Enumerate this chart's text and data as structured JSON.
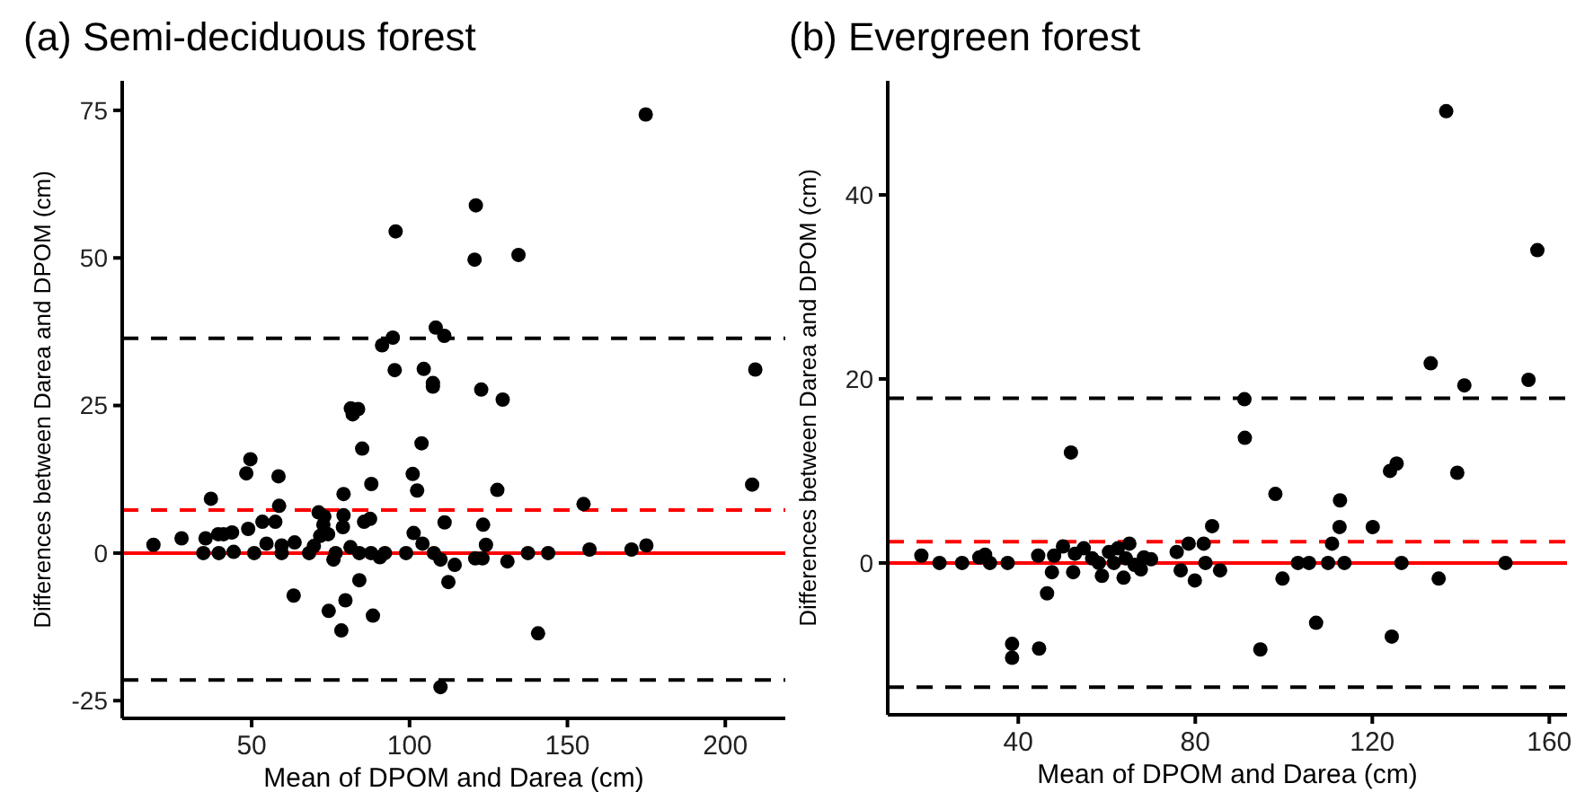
{
  "chart_data": [
    {
      "type": "scatter",
      "title": "(a) Semi-deciduous forest",
      "xlabel": "Mean of DPOM and Darea (cm)",
      "ylabel": "Differences between Darea and DPOM (cm)",
      "xlim": [
        9,
        219
      ],
      "ylim": [
        -28,
        80
      ],
      "xticks": [
        50,
        100,
        150,
        200
      ],
      "yticks": [
        -25,
        0,
        25,
        50,
        75
      ],
      "marker": "circle",
      "ref_lines": [
        {
          "axis": "y",
          "value": 36.4,
          "color": "#000000",
          "line_style": "dashed"
        },
        {
          "axis": "y",
          "value": 7.3,
          "color": "#ff0000",
          "line_style": "dashed"
        },
        {
          "axis": "y",
          "value": 0,
          "color": "#ff0000",
          "line_style": "solid"
        },
        {
          "axis": "y",
          "value": -21.5,
          "color": "#000000",
          "line_style": "dashed"
        }
      ],
      "series": [
        {
          "color": "#000000",
          "x": [
            174.8,
            121,
            95.6,
            120.6,
            134.5,
            108.3,
            111,
            94.7,
            91.3,
            95.3,
            104.5,
            107.4,
            107.4,
            122.7,
            129.5,
            209.5,
            81.4,
            83.7,
            82,
            85,
            103.8,
            49.6,
            48.3,
            58.5,
            101,
            102.4,
            87.9,
            79.1,
            79.1,
            127.8,
            37.1,
            58.7,
            155.1,
            208.5,
            18.9,
            27.8,
            35.4,
            39.4,
            41.1,
            43.8,
            34.7,
            39.6,
            44.3,
            48.9,
            50.8,
            53.4,
            54.7,
            57.5,
            59.5,
            59.5,
            63.6,
            68.2,
            69.7,
            71.7,
            72.7,
            73,
            74.2,
            78.9,
            75.9,
            76.6,
            81.3,
            84.1,
            85.6,
            87.5,
            87.8,
            92.2,
            90.6,
            98.9,
            101.3,
            104.1,
            107.7,
            109.8,
            111.1,
            114.3,
            120.8,
            123.3,
            124.2,
            123.1,
            131,
            137.5,
            143.9,
            157,
            170.3,
            175,
            63.3,
            84.1,
            74.4,
            79.7,
            78.4,
            88.4,
            112.3,
            140.7,
            109.8,
            71.2
          ],
          "values": [
            74.3,
            58.9,
            54.5,
            49.7,
            50.5,
            38.2,
            36.8,
            36.5,
            35.2,
            31,
            31.2,
            28.8,
            28.2,
            27.7,
            26,
            31.1,
            24.5,
            24.4,
            23.5,
            17.7,
            18.6,
            15.9,
            13.5,
            13,
            13.4,
            10.6,
            11.7,
            10,
            6.4,
            10.7,
            9.2,
            8,
            8.3,
            11.6,
            1.4,
            2.5,
            2.5,
            3.2,
            3.2,
            3.5,
            0,
            0,
            0.2,
            4.1,
            0,
            5.3,
            1.6,
            5.3,
            1.3,
            0,
            1.8,
            0,
            1.2,
            2.9,
            4.8,
            6.2,
            3.2,
            4.4,
            -1.1,
            0,
            1,
            0,
            5.3,
            5.8,
            0,
            0,
            -0.7,
            0,
            3.4,
            1.6,
            0,
            -1.1,
            5.2,
            -2,
            -0.9,
            4.8,
            1.4,
            -0.9,
            -1.4,
            0,
            0,
            0.6,
            0.6,
            1.3,
            -7.2,
            -4.6,
            -9.8,
            -8,
            -13.1,
            -10.6,
            -4.9,
            -13.6,
            -22.7,
            6.9
          ]
        }
      ]
    },
    {
      "type": "scatter",
      "title": "(b) Evergreen forest",
      "xlabel": "Mean of DPOM and Darea (cm)",
      "ylabel": "Differences between Darea and DPOM (cm)",
      "xlim": [
        10.5,
        164
      ],
      "ylim": [
        -16.5,
        52.4
      ],
      "xticks": [
        40,
        80,
        120,
        160
      ],
      "yticks": [
        0,
        20,
        40
      ],
      "marker": "circle",
      "ref_lines": [
        {
          "axis": "y",
          "value": 17.9,
          "color": "#000000",
          "line_style": "dashed"
        },
        {
          "axis": "y",
          "value": 2.3,
          "color": "#ff0000",
          "line_style": "dashed"
        },
        {
          "axis": "y",
          "value": 0,
          "color": "#ff0000",
          "line_style": "solid"
        },
        {
          "axis": "y",
          "value": -13.5,
          "color": "#000000",
          "line_style": "dashed"
        }
      ],
      "series": [
        {
          "color": "#000000",
          "x": [
            136.7,
            157.3,
            133.2,
            140.8,
            155.3,
            91.1,
            91.2,
            51.9,
            98.1,
            112.7,
            124,
            125.5,
            139.2,
            18.1,
            22.2,
            27.3,
            31.2,
            32.5,
            33.6,
            37.6,
            38.6,
            38.6,
            44.5,
            44.7,
            46.5,
            47.6,
            48.1,
            50.1,
            52.4,
            52.8,
            54.8,
            56.7,
            58.2,
            58.9,
            60.5,
            61.6,
            62.5,
            63.8,
            64.3,
            65.1,
            66.3,
            67.7,
            68.4,
            70,
            75.8,
            76.7,
            78.5,
            79.9,
            81.9,
            82.3,
            83.8,
            85.6,
            94.7,
            99.7,
            103.2,
            105.7,
            107.3,
            110.9,
            110,
            112.6,
            113.7,
            120.1,
            124.4,
            126.6,
            135,
            150.1
          ],
          "values": [
            49.1,
            34,
            21.7,
            19.3,
            19.9,
            17.8,
            13.6,
            12,
            7.5,
            6.8,
            10,
            10.8,
            9.8,
            0.8,
            0,
            0,
            0.6,
            0.9,
            0,
            0,
            -8.8,
            -10.3,
            0.8,
            -9.3,
            -3.3,
            -1,
            0.8,
            1.8,
            -1,
            1,
            1.6,
            0.5,
            0,
            -1.4,
            1.2,
            0,
            1.6,
            -1.6,
            0.5,
            2.1,
            -0.2,
            -0.7,
            0.6,
            0.4,
            1.2,
            -0.8,
            2.1,
            -1.9,
            2.1,
            0,
            4,
            -0.8,
            -9.4,
            -1.7,
            0,
            0,
            -6.5,
            2.1,
            0,
            3.9,
            0,
            3.9,
            -8,
            0,
            -1.7,
            0
          ]
        }
      ]
    }
  ]
}
